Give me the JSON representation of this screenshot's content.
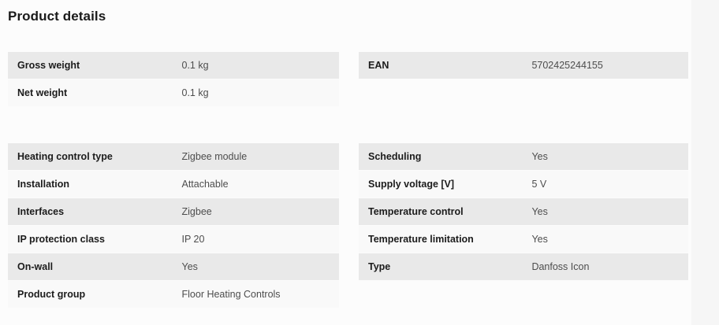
{
  "page": {
    "title": "Product details"
  },
  "colors": {
    "page_bg": "#f6f6f6",
    "content_bg": "#fcfcfc",
    "row_odd_bg": "#e9e9e9",
    "row_even_bg": "#f9f9f9",
    "label_text": "#1c1c1c",
    "value_text": "#4d4d4d"
  },
  "sections": {
    "left_top": [
      {
        "label": "Gross weight",
        "value": "0.1 kg"
      },
      {
        "label": "Net weight",
        "value": "0.1 kg"
      }
    ],
    "right_top": [
      {
        "label": "EAN",
        "value": "5702425244155"
      }
    ],
    "left_bottom": [
      {
        "label": "Heating control type",
        "value": "Zigbee module"
      },
      {
        "label": "Installation",
        "value": "Attachable"
      },
      {
        "label": "Interfaces",
        "value": "Zigbee"
      },
      {
        "label": "IP protection class",
        "value": "IP 20"
      },
      {
        "label": "On-wall",
        "value": "Yes"
      },
      {
        "label": "Product group",
        "value": "Floor Heating Controls"
      }
    ],
    "right_bottom": [
      {
        "label": "Scheduling",
        "value": "Yes"
      },
      {
        "label": "Supply voltage [V]",
        "value": "5 V"
      },
      {
        "label": "Temperature control",
        "value": "Yes"
      },
      {
        "label": "Temperature limitation",
        "value": "Yes"
      },
      {
        "label": "Type",
        "value": "Danfoss Icon"
      }
    ]
  }
}
